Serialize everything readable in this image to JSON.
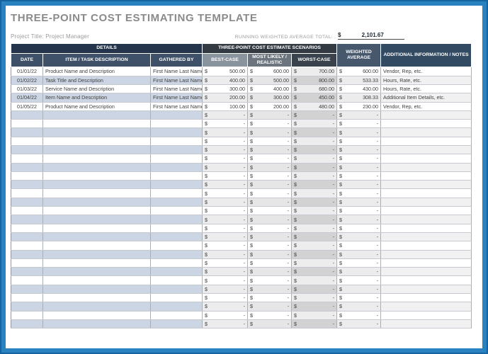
{
  "page": {
    "title": "THREE-POINT COST ESTIMATING TEMPLATE",
    "project_title": "Project Title: Project Manager",
    "running_total_label": "RUNNING WEIGHTED AVERAGE TOTAL:",
    "running_total_currency": "$",
    "running_total_value": "2,101.67"
  },
  "table": {
    "group_headers": {
      "details": "DETAILS",
      "scenarios": "THREE-POINT COST ESTIMATE SCENARIOS",
      "weighted_average": "WEIGHTED AVERAGE",
      "notes": "ADDITIONAL INFORMATION / NOTES"
    },
    "sub_headers": {
      "date": "DATE",
      "item": "ITEM / TASK DESCRIPTION",
      "gathered_by": "GATHERED BY",
      "best_case": "BEST-CASE",
      "most_likely": "MOST LIKELY / REALISTIC",
      "worst_case": "WORST-CASE"
    },
    "currency_symbol": "$",
    "empty_value": "-",
    "empty_row_count": 25,
    "rows": [
      {
        "date": "01/01/22",
        "item": "Product Name and Description",
        "gathered_by": "First Name Last Name",
        "best_case": "500.00",
        "most_likely": "600.00",
        "worst_case": "700.00",
        "weighted_average": "600.00",
        "notes": "Vendor, Rep, etc."
      },
      {
        "date": "01/02/22",
        "item": "Task Title and Description",
        "gathered_by": "First Name Last Name",
        "best_case": "400.00",
        "most_likely": "500.00",
        "worst_case": "800.00",
        "weighted_average": "533.33",
        "notes": "Hours, Rate, etc."
      },
      {
        "date": "01/03/22",
        "item": "Service Name and Description",
        "gathered_by": "First Name Last Name",
        "best_case": "300.00",
        "most_likely": "400.00",
        "worst_case": "680.00",
        "weighted_average": "430.00",
        "notes": "Hours, Rate, etc."
      },
      {
        "date": "01/04/22",
        "item": "Item Name and Description",
        "gathered_by": "First Name Last Name",
        "best_case": "200.00",
        "most_likely": "300.00",
        "worst_case": "450.00",
        "weighted_average": "308.33",
        "notes": "Additional Item Details, etc."
      },
      {
        "date": "01/05/22",
        "item": "Product Name and Description",
        "gathered_by": "First Name Last Name",
        "best_case": "100.00",
        "most_likely": "200.00",
        "worst_case": "480.00",
        "weighted_average": "230.00",
        "notes": "Vendor, Rep, etc."
      }
    ]
  },
  "colors": {
    "frame-blue": "#2b82c1",
    "frame-blue-dark": "#15639f",
    "title-gray": "#8a8a8a",
    "label-gray": "#9b9b9b",
    "total-dark": "#1f2735",
    "header-details": "#24344a",
    "header-sub": "#3f5168",
    "header-scenarios": "#333a42",
    "header-best": "#8a949d",
    "header-most": "#6c757e",
    "header-worst": "#3a434c",
    "header-weighted": "#47586d",
    "header-notes": "#334a63",
    "band-blue": "#ccd5e3",
    "band-gray": "#ececec",
    "band-most": "#e6e6e6",
    "band-worst": "#d2d2d2",
    "band-worst-light": "#ededed",
    "band-notes": "#f1f1f1"
  }
}
